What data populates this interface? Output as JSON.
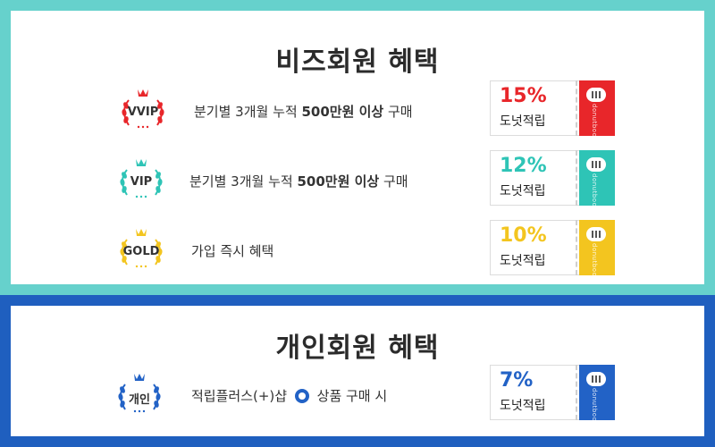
{
  "colors": {
    "biz_frame": "#66d1cc",
    "personal_frame": "#1f5fbf",
    "vvip": "#e8262a",
    "vip": "#2ec4b6",
    "gold": "#f3c51f",
    "personal": "#2262c6"
  },
  "biz": {
    "title": "비즈회원 혜택",
    "tiers": [
      {
        "badge": "VVIP",
        "desc_pre": "분기별 3개월 누적 ",
        "desc_bold": "500만원 이상",
        "desc_post": " 구매",
        "percent": "15%",
        "reward": "도넛적립",
        "brand": "donutbook"
      },
      {
        "badge": "VIP",
        "desc_pre": "분기별 3개월 누적 ",
        "desc_bold": "500만원 이상",
        "desc_post": " 구매",
        "percent": "12%",
        "reward": "도넛적립",
        "brand": "donutbook"
      },
      {
        "badge": "GOLD",
        "desc_pre": "가입 즉시 혜택",
        "desc_bold": "",
        "desc_post": "",
        "percent": "10%",
        "reward": "도넛적립",
        "brand": "donutbook"
      }
    ]
  },
  "personal": {
    "title": "개인회원 혜택",
    "tier": {
      "badge": "개인",
      "desc_pre": "적립플러스(+)샵",
      "desc_post": " 상품 구매 시",
      "icon": "donut-shop-icon",
      "percent": "7%",
      "reward": "도넛적립",
      "brand": "donutbook"
    }
  }
}
